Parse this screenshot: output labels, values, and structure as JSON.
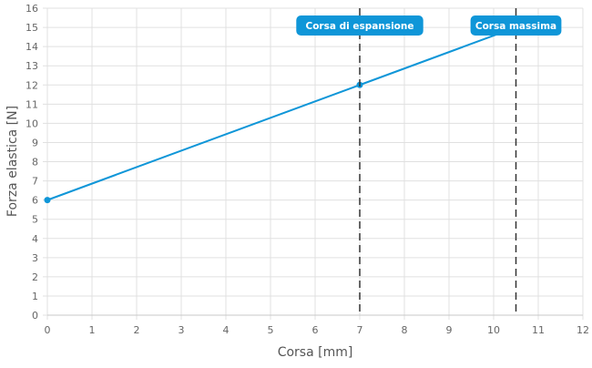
{
  "chart_data": {
    "type": "line",
    "title": "",
    "xlabel": "Corsa [mm]",
    "ylabel": "Forza elastica [N]",
    "xlim": [
      0,
      12
    ],
    "ylim": [
      0,
      16
    ],
    "xticks": [
      0,
      1,
      2,
      3,
      4,
      5,
      6,
      7,
      8,
      9,
      10,
      11,
      12
    ],
    "yticks": [
      0,
      1,
      2,
      3,
      4,
      5,
      6,
      7,
      8,
      9,
      10,
      11,
      12,
      13,
      14,
      15,
      16
    ],
    "grid": true,
    "series": [
      {
        "x": [
          0,
          7,
          10.5
        ],
        "y": [
          6,
          12,
          15
        ],
        "markers": [
          [
            0,
            6
          ],
          [
            7,
            12
          ]
        ],
        "color": "#0f96d8"
      }
    ],
    "annotations": [
      {
        "type": "vline",
        "x": 7,
        "label": "Corsa di espansione",
        "color": "#333333",
        "label_bg": "#0f96d8"
      },
      {
        "type": "vline",
        "x": 10.5,
        "label": "Corsa massima",
        "color": "#333333",
        "label_bg": "#0f96d8"
      }
    ]
  }
}
